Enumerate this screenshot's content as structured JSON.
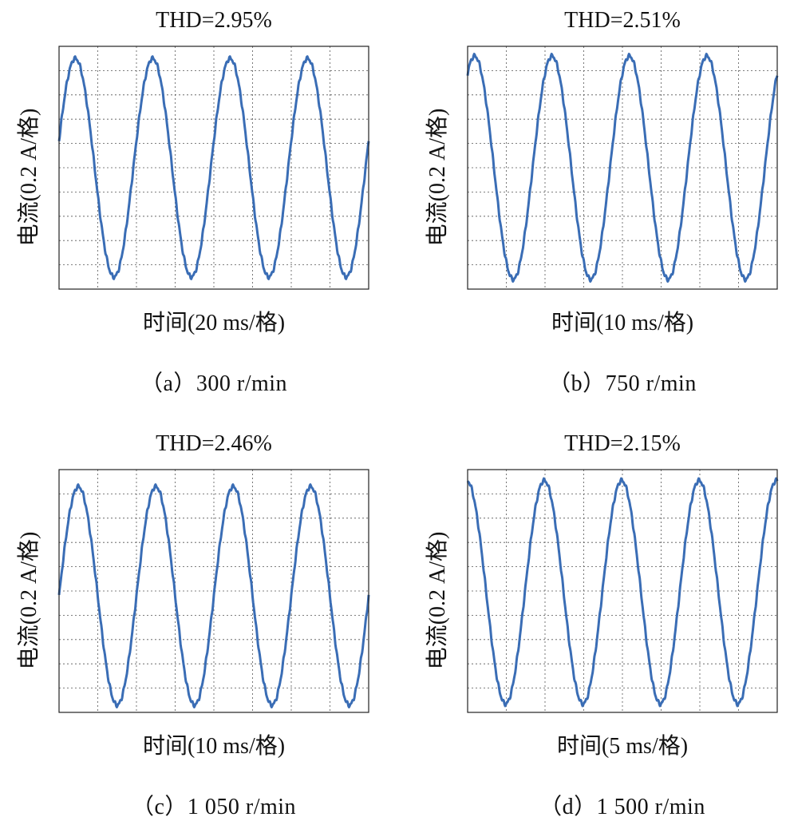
{
  "chart_data": [
    {
      "type": "line",
      "title": "THD=2.95%",
      "ylabel": "电流(0.2 A/格)",
      "xlabel": "时间(20 ms/格)",
      "caption": "（a）300 r/min",
      "grid": true,
      "xlim": [
        0,
        8
      ],
      "ylim": [
        -5,
        5
      ],
      "series": [
        {
          "color": "#3a6db5",
          "cycles": 4.0,
          "phase_start": 0.04,
          "amplitude": 4.5,
          "offset": 0
        }
      ]
    },
    {
      "type": "line",
      "title": "THD=2.51%",
      "ylabel": "电流(0.2 A/格)",
      "xlabel": "时间(10 ms/格)",
      "caption": "（b）750 r/min",
      "grid": true,
      "xlim": [
        0,
        8
      ],
      "ylim": [
        -5,
        5
      ],
      "series": [
        {
          "color": "#3a6db5",
          "cycles": 4.0,
          "phase_start": 0.16,
          "amplitude": 4.6,
          "offset": 0
        }
      ]
    },
    {
      "type": "line",
      "title": "THD=2.46%",
      "ylabel": "电流(0.2 A/格)",
      "xlabel": "时间(10 ms/格)",
      "caption": "（c）1 050 r/min",
      "grid": true,
      "xlim": [
        0,
        8
      ],
      "ylim": [
        -5,
        5
      ],
      "series": [
        {
          "color": "#3a6db5",
          "cycles": 4.0,
          "phase_start": 0.0,
          "amplitude": 4.5,
          "offset": -0.2
        }
      ]
    },
    {
      "type": "line",
      "title": "THD=2.15%",
      "ylabel": "电流(0.2 A/格)",
      "xlabel": "时间(5 ms/格)",
      "caption": "（d）1 500 r/min",
      "grid": true,
      "xlim": [
        0,
        8
      ],
      "ylim": [
        -5,
        5
      ],
      "series": [
        {
          "color": "#3a6db5",
          "cycles": 4.0,
          "phase_start": 0.26,
          "amplitude": 4.6,
          "offset": -0.05
        }
      ]
    }
  ]
}
